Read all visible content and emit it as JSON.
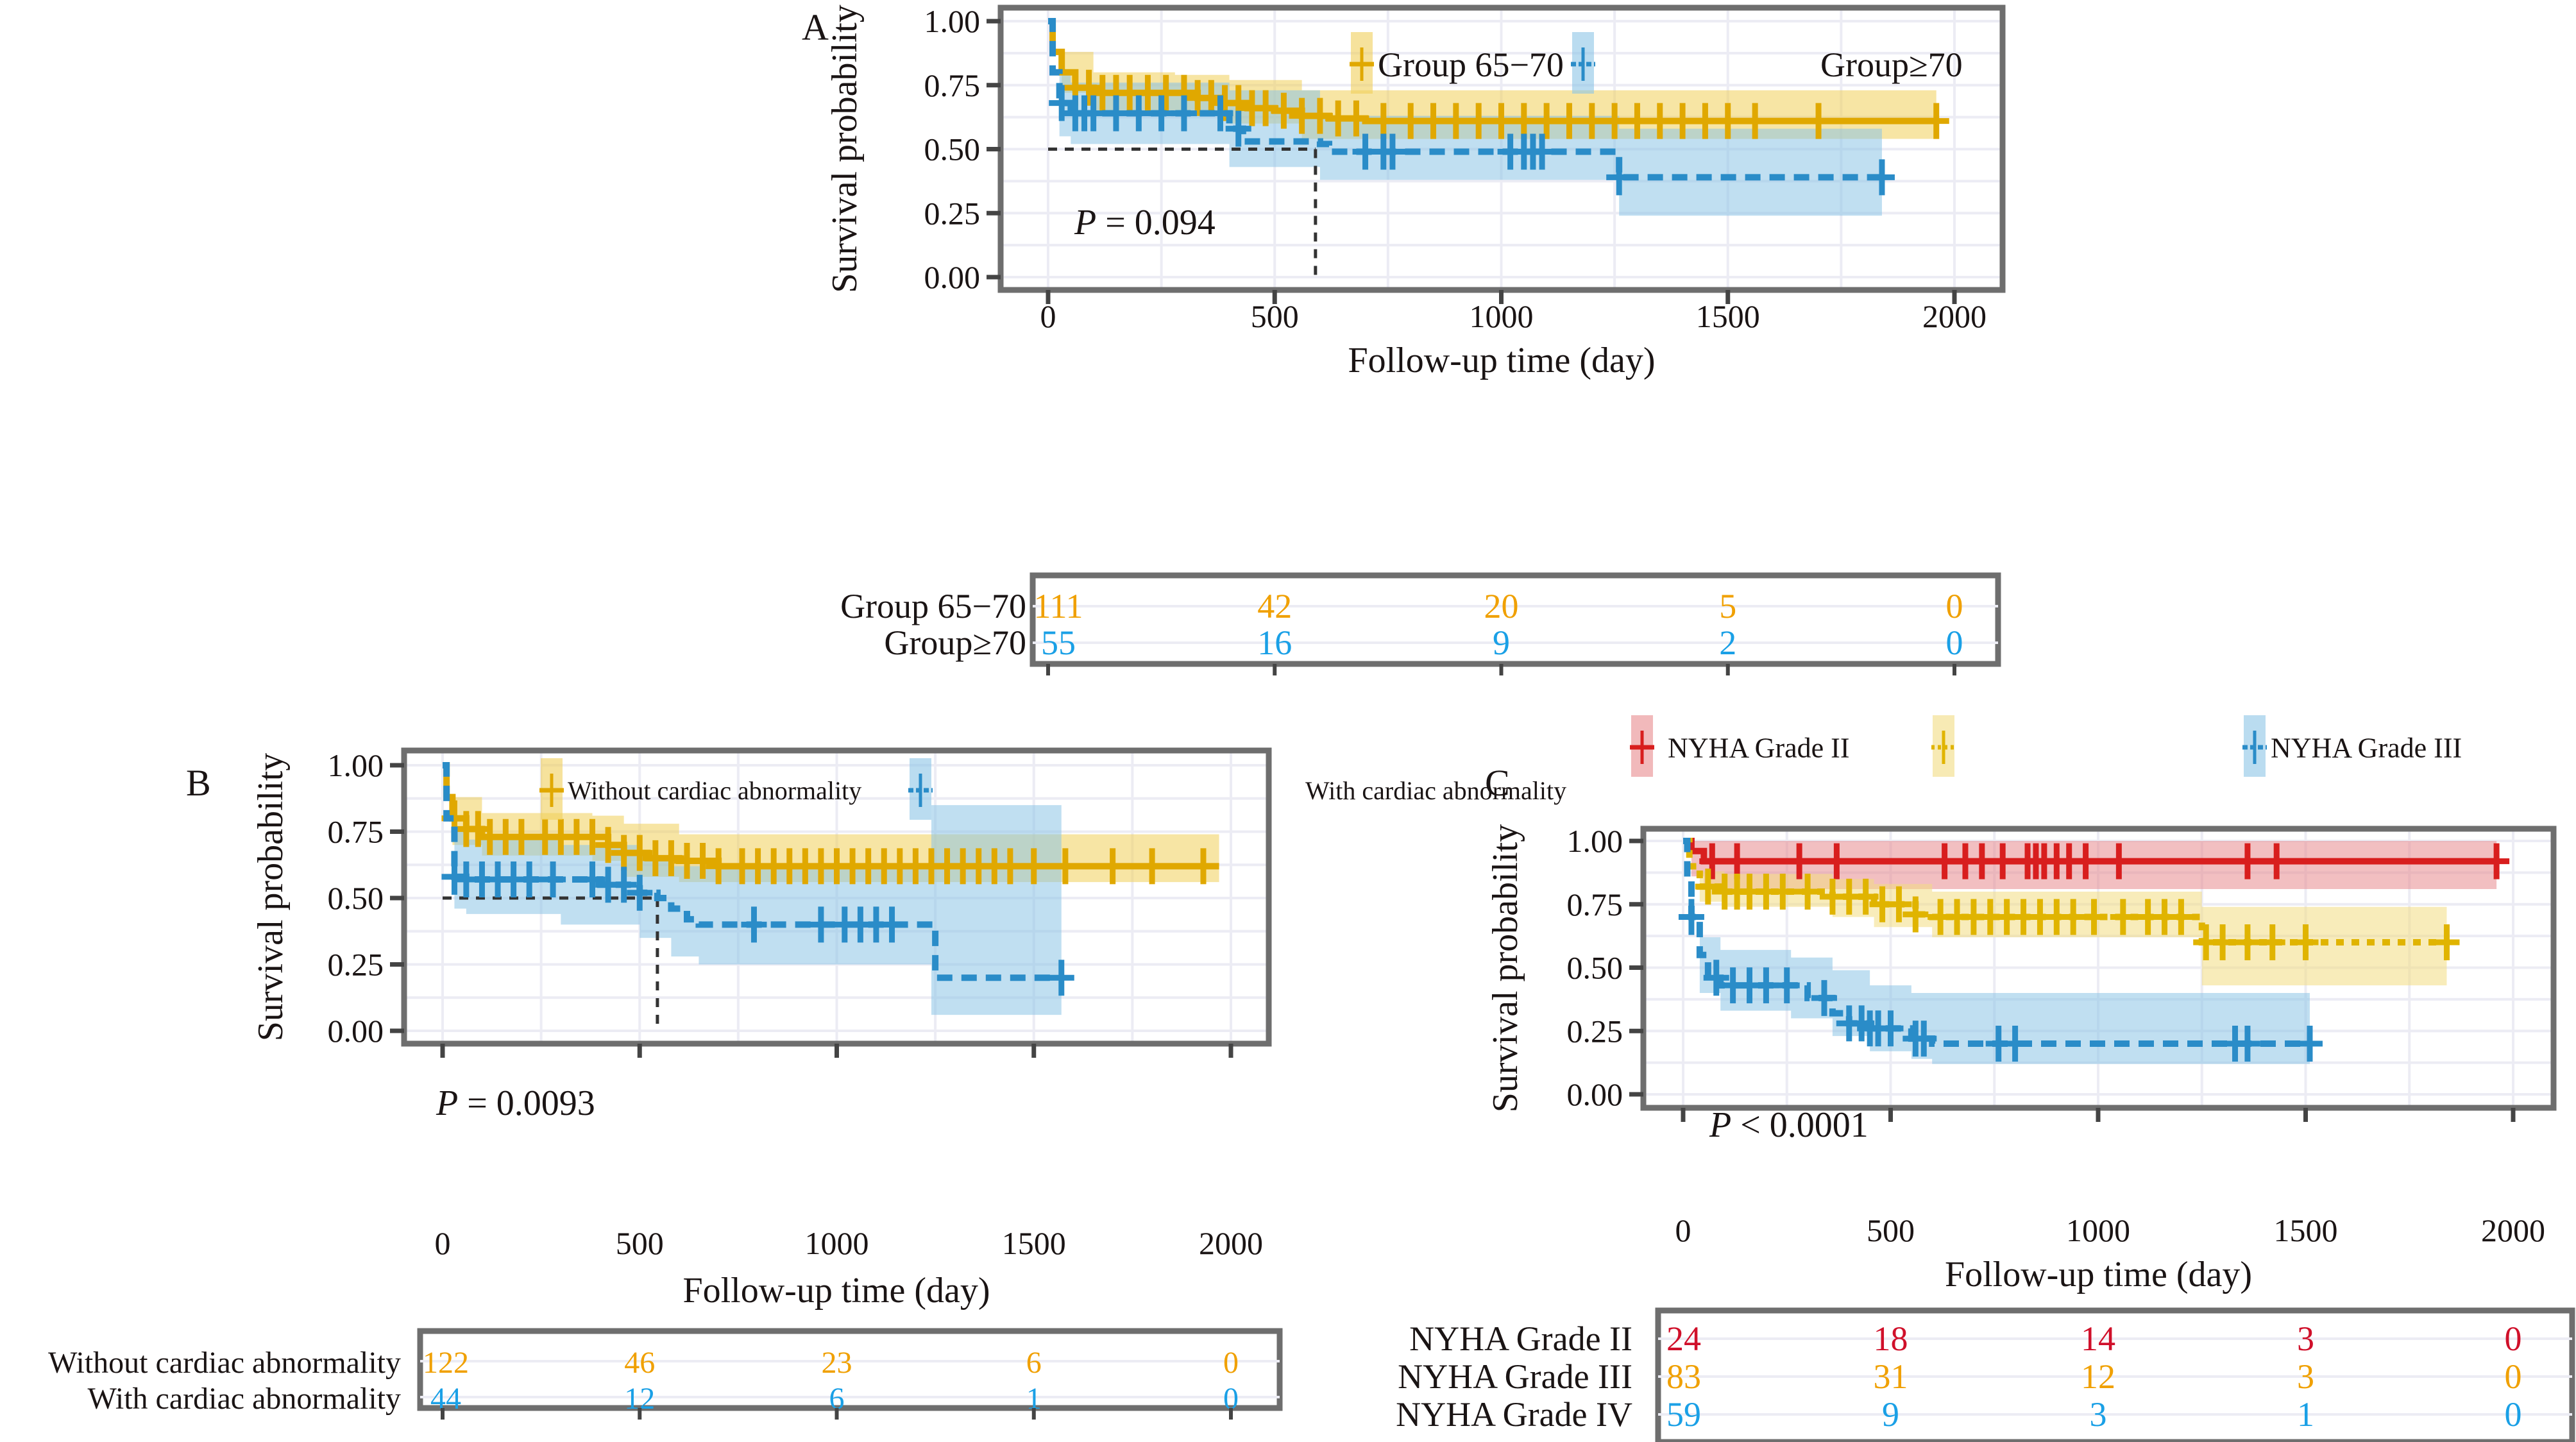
{
  "chart_data": [
    {
      "id": "A",
      "type": "line",
      "subtype": "kaplan-meier",
      "panel_label": "A",
      "xlabel": "Follow-up time (day)",
      "ylabel": "Survival probability",
      "xlim": [
        0,
        2000
      ],
      "ylim": [
        0,
        1
      ],
      "xticks": [
        0,
        500,
        1000,
        1500,
        2000
      ],
      "xtick_labels": [
        "0",
        "500",
        "1000",
        "1500",
        "2000"
      ],
      "yticks": [
        0,
        0.25,
        0.5,
        0.75,
        1.0
      ],
      "ytick_labels": [
        "0.00",
        "0.25",
        "0.50",
        "0.75",
        "1.00"
      ],
      "grid": true,
      "legend_position": "top-right",
      "pvalue": {
        "prefix": "P",
        "text": " = 0.094"
      },
      "median_line": {
        "x": 590,
        "y": 0.5
      },
      "series": [
        {
          "name": "Group 65−70",
          "color": "#e0a800",
          "band_color": "#f0cf5a",
          "dash": "solid",
          "steps": [
            [
              0,
              1.0
            ],
            [
              10,
              0.88
            ],
            [
              30,
              0.8
            ],
            [
              60,
              0.74
            ],
            [
              100,
              0.72
            ],
            [
              280,
              0.72
            ],
            [
              330,
              0.7
            ],
            [
              380,
              0.68
            ],
            [
              440,
              0.66
            ],
            [
              500,
              0.65
            ],
            [
              560,
              0.63
            ],
            [
              620,
              0.62
            ],
            [
              700,
              0.61
            ],
            [
              1960,
              0.61
            ]
          ],
          "band": [
            [
              0,
              1.0,
              1.0
            ],
            [
              30,
              0.88,
              0.72
            ],
            [
              100,
              0.8,
              0.65
            ],
            [
              280,
              0.79,
              0.64
            ],
            [
              400,
              0.77,
              0.6
            ],
            [
              560,
              0.73,
              0.54
            ],
            [
              1960,
              0.73,
              0.53
            ]
          ],
          "censors": [
            60,
            90,
            120,
            150,
            180,
            220,
            260,
            300,
            330,
            360,
            390,
            420,
            450,
            480,
            520,
            560,
            600,
            640,
            680,
            740,
            800,
            850,
            900,
            950,
            1000,
            1050,
            1100,
            1150,
            1200,
            1250,
            1300,
            1350,
            1400,
            1450,
            1500,
            1560,
            1700,
            1960
          ]
        },
        {
          "name": "Group≥70",
          "color": "#2a8cc8",
          "band_color": "#8cc5e6",
          "dash": "dashed",
          "steps": [
            [
              0,
              1.0
            ],
            [
              10,
              0.8
            ],
            [
              25,
              0.68
            ],
            [
              50,
              0.64
            ],
            [
              380,
              0.64
            ],
            [
              400,
              0.58
            ],
            [
              430,
              0.53
            ],
            [
              600,
              0.52
            ],
            [
              620,
              0.49
            ],
            [
              1250,
              0.49
            ],
            [
              1260,
              0.39
            ],
            [
              1840,
              0.39
            ]
          ],
          "band": [
            [
              0,
              1.0,
              1.0
            ],
            [
              25,
              0.8,
              0.55
            ],
            [
              50,
              0.76,
              0.52
            ],
            [
              400,
              0.73,
              0.43
            ],
            [
              600,
              0.63,
              0.38
            ],
            [
              1250,
              0.63,
              0.38
            ],
            [
              1260,
              0.58,
              0.24
            ],
            [
              1840,
              0.58,
              0.24
            ]
          ],
          "censors": [
            30,
            60,
            80,
            100,
            150,
            200,
            250,
            300,
            380,
            420,
            700,
            740,
            760,
            1020,
            1050,
            1070,
            1090,
            1260,
            1840
          ]
        }
      ],
      "risk_table": {
        "rows": [
          {
            "label": "Group 65−70",
            "color": "#f0a000",
            "values": [
              "111",
              "42",
              "20",
              "5",
              "0"
            ]
          },
          {
            "label": "Group≥70",
            "color": "#1aa0e6",
            "values": [
              "55",
              "16",
              "9",
              "2",
              "0"
            ]
          }
        ]
      }
    },
    {
      "id": "B",
      "type": "line",
      "subtype": "kaplan-meier",
      "panel_label": "B",
      "xlabel": "Follow-up time (day)",
      "ylabel": "Survival probability",
      "xlim": [
        0,
        2000
      ],
      "ylim": [
        0,
        1
      ],
      "xticks": [
        0,
        500,
        1000,
        1500,
        2000
      ],
      "xtick_labels": [
        "0",
        "500",
        "1000",
        "1500",
        "2000"
      ],
      "yticks": [
        0,
        0.25,
        0.5,
        0.75,
        1.0
      ],
      "ytick_labels": [
        "0.00",
        "0.25",
        "0.50",
        "0.75",
        "1.00"
      ],
      "grid": true,
      "legend_position": "top-right",
      "pvalue": {
        "prefix": "P",
        "text": " = 0.0093"
      },
      "median_line": {
        "x": 545,
        "y": 0.5
      },
      "series": [
        {
          "name": "Without cardiac abnormality",
          "color": "#e0a800",
          "band_color": "#f0cf5a",
          "dash": "solid",
          "steps": [
            [
              0,
              1.0
            ],
            [
              10,
              0.88
            ],
            [
              25,
              0.8
            ],
            [
              60,
              0.76
            ],
            [
              100,
              0.73
            ],
            [
              380,
              0.73
            ],
            [
              420,
              0.7
            ],
            [
              460,
              0.67
            ],
            [
              520,
              0.65
            ],
            [
              600,
              0.64
            ],
            [
              700,
              0.62
            ],
            [
              1970,
              0.62
            ]
          ],
          "band": [
            [
              0,
              1.0,
              1.0
            ],
            [
              25,
              0.88,
              0.7
            ],
            [
              100,
              0.82,
              0.66
            ],
            [
              380,
              0.81,
              0.64
            ],
            [
              460,
              0.78,
              0.58
            ],
            [
              600,
              0.74,
              0.56
            ],
            [
              1970,
              0.74,
              0.53
            ]
          ],
          "censors": [
            30,
            60,
            90,
            120,
            160,
            200,
            260,
            300,
            340,
            380,
            420,
            460,
            500,
            540,
            580,
            620,
            660,
            700,
            760,
            800,
            840,
            880,
            920,
            960,
            1000,
            1040,
            1080,
            1120,
            1160,
            1200,
            1240,
            1280,
            1320,
            1360,
            1400,
            1440,
            1500,
            1580,
            1700,
            1800,
            1930
          ]
        },
        {
          "name": "With cardiac abnormality",
          "color": "#2a8cc8",
          "band_color": "#8cc5e6",
          "dash": "dashed",
          "steps": [
            [
              0,
              1.0
            ],
            [
              10,
              0.8
            ],
            [
              30,
              0.58
            ],
            [
              60,
              0.57
            ],
            [
              300,
              0.57
            ],
            [
              400,
              0.55
            ],
            [
              500,
              0.52
            ],
            [
              545,
              0.5
            ],
            [
              580,
              0.46
            ],
            [
              620,
              0.42
            ],
            [
              650,
              0.4
            ],
            [
              1240,
              0.4
            ],
            [
              1250,
              0.2
            ],
            [
              1570,
              0.2
            ]
          ],
          "band": [
            [
              0,
              1.0,
              1.0
            ],
            [
              30,
              0.76,
              0.46
            ],
            [
              60,
              0.72,
              0.44
            ],
            [
              300,
              0.7,
              0.4
            ],
            [
              500,
              0.66,
              0.35
            ],
            [
              580,
              0.62,
              0.28
            ],
            [
              650,
              0.62,
              0.25
            ],
            [
              1240,
              0.85,
              0.06
            ],
            [
              1570,
              0.85,
              0.06
            ]
          ],
          "censors": [
            30,
            60,
            100,
            140,
            180,
            220,
            280,
            380,
            420,
            460,
            500,
            790,
            960,
            1020,
            1060,
            1100,
            1140,
            1570
          ]
        }
      ],
      "risk_table": {
        "rows": [
          {
            "label": "Without cardiac abnormality",
            "color": "#f0a000",
            "values": [
              "122",
              "46",
              "23",
              "6",
              "0"
            ]
          },
          {
            "label": "With cardiac abnormality",
            "color": "#1aa0e6",
            "values": [
              "44",
              "12",
              "6",
              "1",
              "0"
            ]
          }
        ]
      }
    },
    {
      "id": "C",
      "type": "line",
      "subtype": "kaplan-meier",
      "panel_label": "C",
      "xlabel": "Follow-up time (day)",
      "ylabel": "Survival probability",
      "xlim": [
        0,
        2000
      ],
      "ylim": [
        0,
        1
      ],
      "xticks": [
        0,
        500,
        1000,
        1500,
        2000
      ],
      "xtick_labels": [
        "0",
        "500",
        "1000",
        "1500",
        "2000"
      ],
      "yticks": [
        0,
        0.25,
        0.5,
        0.75,
        1.0
      ],
      "ytick_labels": [
        "0.00",
        "0.25",
        "0.50",
        "0.75",
        "1.00"
      ],
      "grid": true,
      "legend_position": "top",
      "pvalue": {
        "prefix": "P",
        "text": " < 0.0001"
      },
      "series": [
        {
          "name": "NYHA Grade II",
          "color": "#d81e1e",
          "band_color": "#e88a8e",
          "dash": "solid",
          "steps": [
            [
              0,
              1.0
            ],
            [
              20,
              0.96
            ],
            [
              50,
              0.92
            ],
            [
              1960,
              0.92
            ]
          ],
          "band": [
            [
              0,
              1.0,
              1.0
            ],
            [
              20,
              1.0,
              0.86
            ],
            [
              50,
              1.0,
              0.81
            ],
            [
              1960,
              1.0,
              0.81
            ]
          ],
          "censors": [
            70,
            130,
            280,
            370,
            630,
            680,
            720,
            770,
            830,
            850,
            870,
            900,
            930,
            970,
            1050,
            1360,
            1430,
            1960
          ]
        },
        {
          "name": "NYHA Grade III",
          "color": "#e0b400",
          "band_color": "#f2dc82",
          "dash": "dotted",
          "steps": [
            [
              0,
              1.0
            ],
            [
              15,
              0.9
            ],
            [
              40,
              0.82
            ],
            [
              100,
              0.8
            ],
            [
              300,
              0.8
            ],
            [
              360,
              0.78
            ],
            [
              460,
              0.75
            ],
            [
              560,
              0.71
            ],
            [
              600,
              0.7
            ],
            [
              1240,
              0.7
            ],
            [
              1250,
              0.6
            ],
            [
              1840,
              0.6
            ]
          ],
          "band": [
            [
              0,
              1.0,
              1.0
            ],
            [
              40,
              0.88,
              0.76
            ],
            [
              100,
              0.87,
              0.74
            ],
            [
              360,
              0.85,
              0.7
            ],
            [
              460,
              0.83,
              0.66
            ],
            [
              600,
              0.8,
              0.62
            ],
            [
              1240,
              0.8,
              0.62
            ],
            [
              1250,
              0.74,
              0.43
            ],
            [
              1840,
              0.74,
              0.43
            ]
          ],
          "censors": [
            60,
            100,
            130,
            160,
            200,
            240,
            300,
            360,
            400,
            440,
            480,
            520,
            560,
            620,
            660,
            700,
            740,
            780,
            820,
            860,
            900,
            940,
            990,
            1060,
            1120,
            1160,
            1200,
            1260,
            1300,
            1360,
            1420,
            1500,
            1840
          ]
        },
        {
          "name": "NYHA Grade IV",
          "color": "#2a8cc8",
          "band_color": "#8cc5e6",
          "dash": "dashed",
          "steps": [
            [
              0,
              1.0
            ],
            [
              10,
              0.85
            ],
            [
              20,
              0.7
            ],
            [
              40,
              0.55
            ],
            [
              60,
              0.46
            ],
            [
              90,
              0.43
            ],
            [
              260,
              0.43
            ],
            [
              300,
              0.38
            ],
            [
              360,
              0.32
            ],
            [
              400,
              0.28
            ],
            [
              450,
              0.26
            ],
            [
              550,
              0.22
            ],
            [
              600,
              0.2
            ],
            [
              1510,
              0.2
            ]
          ],
          "band": [
            [
              0,
              1.0,
              1.0
            ],
            [
              40,
              0.62,
              0.4
            ],
            [
              90,
              0.57,
              0.33
            ],
            [
              260,
              0.54,
              0.3
            ],
            [
              360,
              0.49,
              0.23
            ],
            [
              450,
              0.43,
              0.17
            ],
            [
              550,
              0.4,
              0.14
            ],
            [
              600,
              0.4,
              0.12
            ],
            [
              1510,
              0.4,
              0.12
            ]
          ],
          "censors": [
            20,
            80,
            120,
            160,
            200,
            250,
            340,
            400,
            430,
            450,
            470,
            500,
            560,
            580,
            760,
            800,
            1330,
            1360,
            1510
          ]
        }
      ],
      "risk_table": {
        "rows": [
          {
            "label": "NYHA Grade II",
            "color": "#d0102a",
            "values": [
              "24",
              "18",
              "14",
              "3",
              "0"
            ]
          },
          {
            "label": "NYHA Grade III",
            "color": "#f0a000",
            "values": [
              "83",
              "31",
              "12",
              "3",
              "0"
            ]
          },
          {
            "label": "NYHA Grade IV",
            "color": "#1aa0e6",
            "values": [
              "59",
              "9",
              "3",
              "1",
              "0"
            ]
          }
        ]
      }
    }
  ]
}
